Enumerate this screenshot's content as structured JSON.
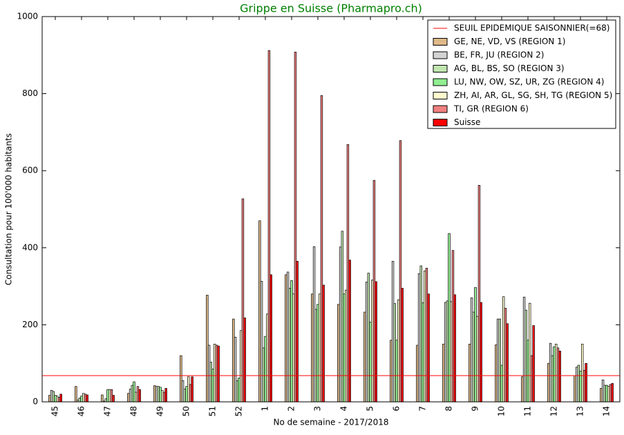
{
  "chart_data": {
    "type": "bar",
    "title": "Grippe en Suisse (Pharmapro.ch)",
    "x_label": "No de semaine - 2017/2018",
    "y_label": "Consultation pour 100'000 habitants",
    "categories": [
      "45",
      "46",
      "47",
      "48",
      "49",
      "50",
      "51",
      "52",
      "1",
      "2",
      "3",
      "4",
      "5",
      "6",
      "7",
      "8",
      "9",
      "10",
      "11",
      "12",
      "13",
      "14"
    ],
    "series": [
      {
        "name": "GE, NE, VD, VS (REGION 1)",
        "color": "#deb887",
        "values": [
          17,
          40,
          18,
          22,
          42,
          120,
          277,
          215,
          470,
          330,
          280,
          253,
          233,
          160,
          147,
          150,
          150,
          148,
          65,
          100,
          68,
          35
        ]
      },
      {
        "name": "BE, FR, JU (REGION 2)",
        "color": "#d3d3d3",
        "values": [
          30,
          5,
          2,
          33,
          40,
          55,
          147,
          168,
          313,
          337,
          403,
          402,
          311,
          365,
          333,
          258,
          270,
          215,
          272,
          152,
          90,
          57
        ]
      },
      {
        "name": "AG, BL, BS, SO (REGION 3)",
        "color": "#c1e6b0",
        "values": [
          27,
          10,
          8,
          43,
          40,
          33,
          103,
          55,
          140,
          295,
          240,
          443,
          334,
          255,
          353,
          262,
          233,
          215,
          238,
          120,
          95,
          43
        ]
      },
      {
        "name": "LU, NW, OW, SZ, UR, ZG (REGION 4)",
        "color": "#90ee90",
        "values": [
          17,
          15,
          32,
          52,
          38,
          40,
          85,
          62,
          170,
          315,
          253,
          280,
          207,
          160,
          257,
          437,
          297,
          95,
          160,
          143,
          80,
          43
        ]
      },
      {
        "name": "ZH, AI, AR, GL, SG, SH, TG (REGION 5)",
        "color": "#fffacd",
        "values": [
          15,
          22,
          32,
          25,
          30,
          65,
          150,
          185,
          228,
          280,
          280,
          290,
          316,
          265,
          340,
          260,
          222,
          273,
          256,
          150,
          150,
          40
        ]
      },
      {
        "name": "TI, GR (REGION 6)",
        "color": "#f08080",
        "values": [
          12,
          20,
          32,
          40,
          25,
          45,
          147,
          527,
          912,
          908,
          795,
          668,
          575,
          678,
          347,
          393,
          562,
          243,
          120,
          140,
          82,
          45
        ]
      },
      {
        "name": "Suisse",
        "color": "#ff0000",
        "values": [
          20,
          18,
          17,
          32,
          35,
          65,
          145,
          218,
          330,
          365,
          303,
          368,
          312,
          295,
          280,
          278,
          258,
          203,
          198,
          132,
          100,
          48
        ]
      }
    ],
    "threshold": {
      "name": "SEUIL EPIDEMIQUE SAISONNIER(=68)",
      "value": 68,
      "color": "#ff0000"
    },
    "ylim": [
      0,
      1000
    ],
    "yticks": [
      0,
      200,
      400,
      600,
      800,
      1000
    ]
  }
}
